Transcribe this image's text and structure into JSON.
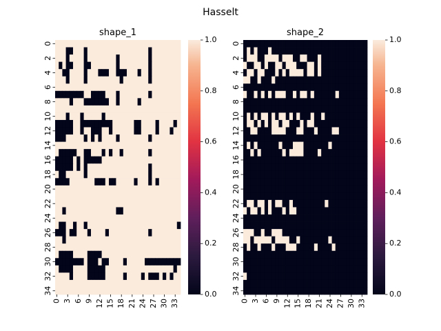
{
  "figure": {
    "suptitle": "Hasselt"
  },
  "chart_data": [
    {
      "type": "heatmap",
      "title": "shape_1",
      "xlabel": "",
      "ylabel": "",
      "x_ticks": [
        "0",
        "3",
        "6",
        "9",
        "12",
        "15",
        "18",
        "21",
        "24",
        "27",
        "30",
        "33"
      ],
      "y_ticks": [
        "0",
        "2",
        "4",
        "6",
        "8",
        "10",
        "12",
        "14",
        "16",
        "18",
        "20",
        "22",
        "24",
        "26",
        "28",
        "30",
        "32",
        "34"
      ],
      "colorbar": {
        "min": 0.0,
        "max": 1.0,
        "ticks": [
          "0.0",
          "0.2",
          "0.4",
          "0.6",
          "0.8",
          "1.0"
        ],
        "colormap": "rocket"
      },
      "grid_size": [
        35,
        35
      ],
      "matrix": [
        "11111111111111111111111111111111111",
        "11100111011111111111111111011111111",
        "11101111011111111011111111011111111",
        "10100111001111111011111111011111111",
        "11001111011100011000111011011111111",
        "11101111011111111101111111011111111",
        "11111111111111111111111111111111111",
        "00000000110000111011111111011111111",
        "11110111000000011011111011111111111",
        "11111111111111111111111111111111111",
        "11101110111110111111111111111111111",
        "00000110000000001111110011110111101",
        "00000110110001101111110011110111011",
        "00011111010101111011111111011111111",
        "11111111111111111111111111111111111",
        "10000011001110101101111111011111111",
        "00000101000001111111111111111111111",
        "00000101011111111111111111011111111",
        "10011111011111111111111111011111111",
        "00001111111000100111110111010111111",
        "11111111111111111111111111111111111",
        "11111111111111111111111111111111111",
        "11111111111111111111111111111111111",
        "11011111111111111001111111111111111",
        "11111111111111111111111111111111111",
        "10011011011111111111111111111111110",
        "00010011101111011111111111011111111",
        "11011111111111111111111111111111111",
        "11111111111111111111111111111111111",
        "10000111100001111111111111111111111",
        "00000000100010011110111110000000000",
        "10000111100000111111111111111111101",
        "11110111100000111110111101000101011",
        "11111111111111111111111111111111111",
        "11111111111111111111111111111111111"
      ]
    },
    {
      "type": "heatmap",
      "title": "shape_2",
      "xlabel": "",
      "ylabel": "",
      "x_ticks": [
        "0",
        "3",
        "6",
        "9",
        "12",
        "15",
        "18",
        "21",
        "24",
        "27",
        "30",
        "33"
      ],
      "y_ticks": [
        "0",
        "2",
        "4",
        "6",
        "8",
        "10",
        "12",
        "14",
        "16",
        "18",
        "20",
        "22",
        "24",
        "26",
        "28",
        "30",
        "32",
        "34"
      ],
      "colorbar": {
        "min": 0.0,
        "max": 1.0,
        "ticks": [
          "0.0",
          "0.2",
          "0.4",
          "0.6",
          "0.8",
          "1.0"
        ],
        "colormap": "rocket"
      },
      "grid_size": [
        35,
        35
      ],
      "matrix": [
        "00000000000000000000000000000000000",
        "01010001000000000000000000000000000",
        "01110011110111001100010000000000000",
        "10011010011011100011010000000000000",
        "01101100010101111011010000000000000",
        "11001000100000000000000000000000000",
        "00000000000000000000000000000000000",
        "10010101011100101101000000100000000",
        "00000000000000000000000000000000000",
        "00000000000000000000000000000000000",
        "01010110101101010001001000000000000",
        "01101010110110001011000000000000000",
        "00110000111100011000100001100000000",
        "00000000000000000000000000000000000",
        "01010000001000111000000010000000000",
        "00101000000101111000010000000000000",
        "00000000000000000000000000000000000",
        "00000000000000000000000000000000000",
        "00000000000000000000000000000000000",
        "00000000000000000000000000000000000",
        "00000000000000000000000000000000000",
        "00000000000000000000000000000000000",
        "01101101011001000000000100000000000",
        "10110101000101100000000000000000000",
        "00000000000000000000000000000000000",
        "00000000000000000000000000000000000",
        "11100100111000000000000000000000000",
        "11011111011110010000000010000000000",
        "01001000100011100000100001000000000",
        "00000000000000000000000000000000000",
        "00000000000000000000000000000000000",
        "00000000000000000000000000000000000",
        "10000000000000000000000000000000000",
        "00000000000000000000000000000000000",
        "00000000000000000000000000000000000"
      ]
    }
  ]
}
